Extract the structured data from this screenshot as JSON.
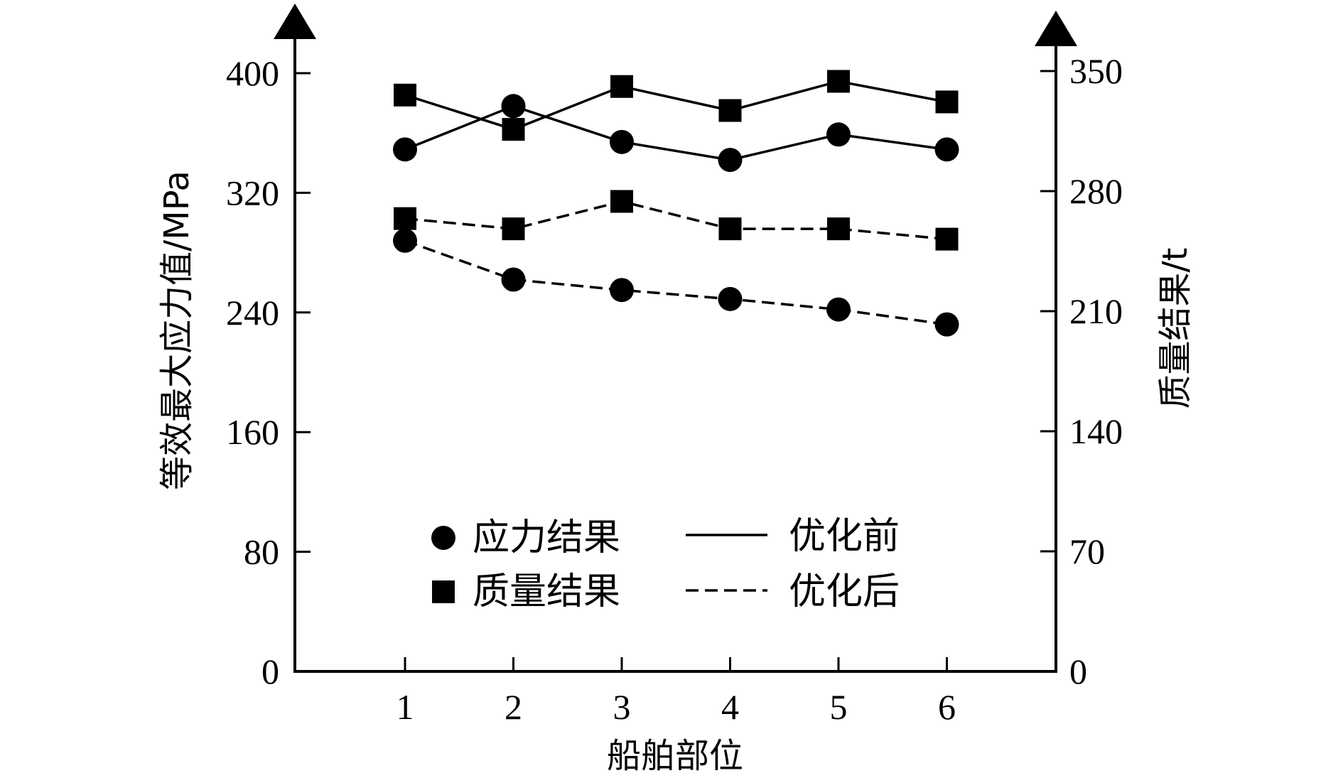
{
  "chart_data": {
    "type": "line",
    "categories": [
      "1",
      "2",
      "3",
      "4",
      "5",
      "6"
    ],
    "xlabel": "船舶部位",
    "ylabel_left": "等效最大应力值/MPa",
    "ylabel_right": "质量结果/t",
    "ylim_left": [
      0,
      400
    ],
    "ylim_right": [
      0,
      350
    ],
    "yticks_left": [
      "0",
      "80",
      "160",
      "240",
      "320",
      "400"
    ],
    "yticks_right": [
      "0",
      "70",
      "140",
      "210",
      "280",
      "350"
    ],
    "series": [
      {
        "key": "stress_before",
        "metric": "应力结果",
        "stage": "优化前",
        "axis": "left",
        "marker": "circle",
        "line": "solid",
        "values": [
          349,
          378,
          354,
          342,
          359,
          349
        ]
      },
      {
        "key": "mass_before",
        "metric": "质量结果",
        "stage": "优化前",
        "axis": "right",
        "marker": "square",
        "line": "solid",
        "values": [
          336,
          316,
          341,
          327,
          344,
          332
        ]
      },
      {
        "key": "mass_after",
        "metric": "质量结果",
        "stage": "优化后",
        "axis": "right",
        "marker": "square",
        "line": "dashed",
        "values": [
          264,
          258,
          274,
          258,
          258,
          252
        ]
      },
      {
        "key": "stress_after",
        "metric": "应力结果",
        "stage": "优化后",
        "axis": "left",
        "marker": "circle",
        "line": "dashed",
        "values": [
          288,
          262,
          255,
          249,
          242,
          232
        ]
      }
    ],
    "legend": {
      "position": "bottom-center",
      "markers": [
        {
          "label": "应力结果",
          "marker": "circle"
        },
        {
          "label": "质量结果",
          "marker": "square"
        }
      ],
      "lines": [
        {
          "label": "优化前",
          "line": "solid"
        },
        {
          "label": "优化后",
          "line": "dashed"
        }
      ]
    },
    "grid": false,
    "colors": {
      "ink": "#000000",
      "background": "#ffffff"
    }
  }
}
